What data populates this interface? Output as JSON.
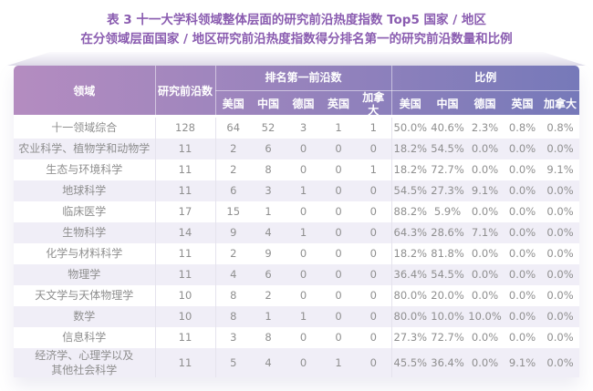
{
  "title": {
    "line1": "表 3 十一大学科领域整体层面的研究前沿热度指数 Top5 国家 / 地区",
    "line2": "在分领域层面国家 / 地区研究前沿热度指数得分排名第一的研究前沿数量和比例"
  },
  "table": {
    "header": {
      "field": "领域",
      "frontier_count": "研究前沿数",
      "rank_group": "排名第一前沿数",
      "ratio_group": "比例",
      "countries": [
        "美国",
        "中国",
        "德国",
        "英国",
        "加拿大"
      ]
    },
    "rows": [
      {
        "field": "十一领域综合",
        "count": "128",
        "rank": [
          "64",
          "52",
          "3",
          "1",
          "1"
        ],
        "ratio": [
          "50.0%",
          "40.6%",
          "2.3%",
          "0.8%",
          "0.8%"
        ]
      },
      {
        "field": "农业科学、植物学和动物学",
        "count": "11",
        "rank": [
          "2",
          "6",
          "0",
          "0",
          "0"
        ],
        "ratio": [
          "18.2%",
          "54.5%",
          "0.0%",
          "0.0%",
          "0.0%"
        ]
      },
      {
        "field": "生态与环境科学",
        "count": "11",
        "rank": [
          "2",
          "8",
          "0",
          "0",
          "1"
        ],
        "ratio": [
          "18.2%",
          "72.7%",
          "0.0%",
          "0.0%",
          "9.1%"
        ]
      },
      {
        "field": "地球科学",
        "count": "11",
        "rank": [
          "6",
          "3",
          "1",
          "0",
          "0"
        ],
        "ratio": [
          "54.5%",
          "27.3%",
          "9.1%",
          "0.0%",
          "0.0%"
        ]
      },
      {
        "field": "临床医学",
        "count": "17",
        "rank": [
          "15",
          "1",
          "0",
          "0",
          "0"
        ],
        "ratio": [
          "88.2%",
          "5.9%",
          "0.0%",
          "0.0%",
          "0.0%"
        ]
      },
      {
        "field": "生物科学",
        "count": "14",
        "rank": [
          "9",
          "4",
          "1",
          "0",
          "0"
        ],
        "ratio": [
          "64.3%",
          "28.6%",
          "7.1%",
          "0.0%",
          "0.0%"
        ]
      },
      {
        "field": "化学与材料科学",
        "count": "11",
        "rank": [
          "2",
          "9",
          "0",
          "0",
          "0"
        ],
        "ratio": [
          "18.2%",
          "81.8%",
          "0.0%",
          "0.0%",
          "0.0%"
        ]
      },
      {
        "field": "物理学",
        "count": "11",
        "rank": [
          "4",
          "6",
          "0",
          "0",
          "0"
        ],
        "ratio": [
          "36.4%",
          "54.5%",
          "0.0%",
          "0.0%",
          "0.0%"
        ]
      },
      {
        "field": "天文学与天体物理学",
        "count": "10",
        "rank": [
          "8",
          "2",
          "0",
          "0",
          "0"
        ],
        "ratio": [
          "80.0%",
          "20.0%",
          "0.0%",
          "0.0%",
          "0.0%"
        ]
      },
      {
        "field": "数学",
        "count": "10",
        "rank": [
          "8",
          "1",
          "1",
          "0",
          "0"
        ],
        "ratio": [
          "80.0%",
          "10.0%",
          "10.0%",
          "0.0%",
          "0.0%"
        ]
      },
      {
        "field": "信息科学",
        "count": "11",
        "rank": [
          "3",
          "8",
          "0",
          "0",
          "0"
        ],
        "ratio": [
          "27.3%",
          "72.7%",
          "0.0%",
          "0.0%",
          "0.0%"
        ]
      },
      {
        "field": "经济学、心理学以及\n其他社会科学",
        "count": "11",
        "rank": [
          "5",
          "4",
          "0",
          "1",
          "0"
        ],
        "ratio": [
          "45.5%",
          "36.4%",
          "0.0%",
          "9.1%",
          "0.0%"
        ]
      }
    ]
  },
  "chart_data": {
    "type": "table",
    "title": "表 3 十一大学科领域整体层面的研究前沿热度指数 Top5 国家 / 地区 在分领域层面国家 / 地区研究前沿热度指数得分排名第一的研究前沿数量和比例",
    "column_groups": [
      "领域",
      "研究前沿数",
      "排名第一前沿数",
      "比例"
    ],
    "countries": [
      "美国",
      "中国",
      "德国",
      "英国",
      "加拿大"
    ],
    "rows": [
      {
        "field": "十一领域综合",
        "frontier_count": 128,
        "rank_first": [
          64,
          52,
          3,
          1,
          1
        ],
        "ratio_pct": [
          50.0,
          40.6,
          2.3,
          0.8,
          0.8
        ]
      },
      {
        "field": "农业科学、植物学和动物学",
        "frontier_count": 11,
        "rank_first": [
          2,
          6,
          0,
          0,
          0
        ],
        "ratio_pct": [
          18.2,
          54.5,
          0.0,
          0.0,
          0.0
        ]
      },
      {
        "field": "生态与环境科学",
        "frontier_count": 11,
        "rank_first": [
          2,
          8,
          0,
          0,
          1
        ],
        "ratio_pct": [
          18.2,
          72.7,
          0.0,
          0.0,
          9.1
        ]
      },
      {
        "field": "地球科学",
        "frontier_count": 11,
        "rank_first": [
          6,
          3,
          1,
          0,
          0
        ],
        "ratio_pct": [
          54.5,
          27.3,
          9.1,
          0.0,
          0.0
        ]
      },
      {
        "field": "临床医学",
        "frontier_count": 17,
        "rank_first": [
          15,
          1,
          0,
          0,
          0
        ],
        "ratio_pct": [
          88.2,
          5.9,
          0.0,
          0.0,
          0.0
        ]
      },
      {
        "field": "生物科学",
        "frontier_count": 14,
        "rank_first": [
          9,
          4,
          1,
          0,
          0
        ],
        "ratio_pct": [
          64.3,
          28.6,
          7.1,
          0.0,
          0.0
        ]
      },
      {
        "field": "化学与材料科学",
        "frontier_count": 11,
        "rank_first": [
          2,
          9,
          0,
          0,
          0
        ],
        "ratio_pct": [
          18.2,
          81.8,
          0.0,
          0.0,
          0.0
        ]
      },
      {
        "field": "物理学",
        "frontier_count": 11,
        "rank_first": [
          4,
          6,
          0,
          0,
          0
        ],
        "ratio_pct": [
          36.4,
          54.5,
          0.0,
          0.0,
          0.0
        ]
      },
      {
        "field": "天文学与天体物理学",
        "frontier_count": 10,
        "rank_first": [
          8,
          2,
          0,
          0,
          0
        ],
        "ratio_pct": [
          80.0,
          20.0,
          0.0,
          0.0,
          0.0
        ]
      },
      {
        "field": "数学",
        "frontier_count": 10,
        "rank_first": [
          8,
          1,
          1,
          0,
          0
        ],
        "ratio_pct": [
          80.0,
          10.0,
          10.0,
          0.0,
          0.0
        ]
      },
      {
        "field": "信息科学",
        "frontier_count": 11,
        "rank_first": [
          3,
          8,
          0,
          0,
          0
        ],
        "ratio_pct": [
          27.3,
          72.7,
          0.0,
          0.0,
          0.0
        ]
      },
      {
        "field": "经济学、心理学以及其他社会科学",
        "frontier_count": 11,
        "rank_first": [
          5,
          4,
          0,
          1,
          0
        ],
        "ratio_pct": [
          45.5,
          36.4,
          0.0,
          9.1,
          0.0
        ]
      }
    ]
  },
  "colors": {
    "title_text": "#8a5cb0",
    "header_gradient_left": "#b48cc0",
    "header_gradient_right": "#7679b9",
    "header_text": "#ffffff",
    "row_stripe": "#f0eef7",
    "body_text": "#8f8f8f",
    "divider": "#e5e3ed"
  }
}
